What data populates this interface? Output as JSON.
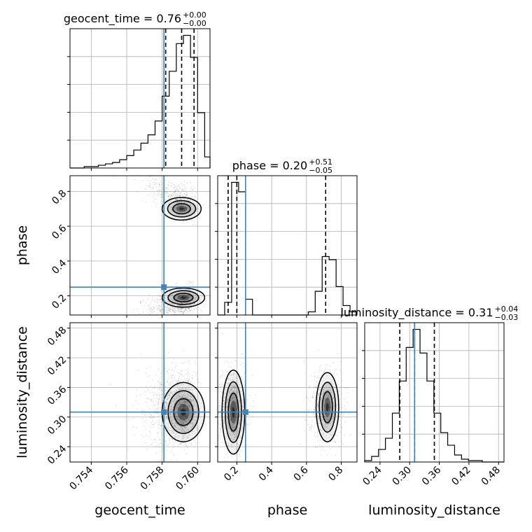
{
  "colors": {
    "truth": "#4682b4",
    "hist": "#000000",
    "grid": "#b0b0b0",
    "points": "#000000"
  },
  "chart_data": {
    "type": "corner",
    "parameters": [
      "geocent_time",
      "phase",
      "luminosity_distance"
    ],
    "titles": [
      {
        "param": "geocent_time",
        "text": "geocent_time = 0.76",
        "sup": "+0.00",
        "sub": "−0.00"
      },
      {
        "param": "phase",
        "text": "phase = 0.20",
        "sup": "+0.51",
        "sub": "−0.05"
      },
      {
        "param": "luminosity_distance",
        "text": "luminosity_distance = 0.31",
        "sup": "+0.04",
        "sub": "−0.03"
      }
    ],
    "ranges": {
      "geocent_time": [
        0.7528,
        0.7607
      ],
      "phase": [
        0.09,
        0.89
      ],
      "luminosity_distance": [
        0.209,
        0.491
      ]
    },
    "ticks": {
      "geocent_time": [
        0.754,
        0.756,
        0.758,
        0.76
      ],
      "phase": [
        0.2,
        0.4,
        0.6,
        0.8
      ],
      "luminosity_distance": [
        0.24,
        0.3,
        0.36,
        0.42,
        0.48
      ]
    },
    "tick_labels": {
      "geocent_time": [
        "0.754",
        "0.756",
        "0.758",
        "0.760"
      ],
      "phase": [
        "0.2",
        "0.4",
        "0.6",
        "0.8"
      ],
      "luminosity_distance": [
        "0.24",
        "0.30",
        "0.36",
        "0.42",
        "0.48"
      ]
    },
    "axis_labels": {
      "geocent_time": "geocent_time",
      "phase": "phase",
      "luminosity_distance": "luminosity_distance"
    },
    "truths": {
      "geocent_time": 0.7581,
      "phase": 0.25,
      "luminosity_distance": 0.31
    },
    "quantiles": {
      "geocent_time": [
        0.7582,
        0.7591,
        0.7598
      ],
      "phase": [
        0.15,
        0.2,
        0.71
      ],
      "luminosity_distance": [
        0.28,
        0.31,
        0.35
      ]
    },
    "histograms": {
      "geocent_time": {
        "edges": [
          0.7528,
          0.7532,
          0.7536,
          0.754,
          0.7544,
          0.7548,
          0.7552,
          0.7556,
          0.756,
          0.7564,
          0.7568,
          0.7572,
          0.7576,
          0.758,
          0.7584,
          0.7588,
          0.7592,
          0.7596,
          0.76,
          0.7604,
          0.7607
        ],
        "counts": [
          0,
          0,
          1,
          1,
          2,
          3,
          4,
          6,
          9,
          13,
          18,
          24,
          34,
          52,
          70,
          90,
          96,
          80,
          40,
          8
        ]
      },
      "phase": {
        "edges": [
          0.09,
          0.13,
          0.17,
          0.21,
          0.25,
          0.29,
          0.33,
          0.37,
          0.41,
          0.45,
          0.49,
          0.53,
          0.57,
          0.61,
          0.65,
          0.69,
          0.73,
          0.77,
          0.81,
          0.85,
          0.89
        ],
        "counts": [
          0,
          8,
          84,
          78,
          10,
          0,
          0,
          0,
          0,
          0,
          0,
          0,
          0,
          2,
          15,
          37,
          35,
          18,
          6,
          2
        ]
      },
      "luminosity_distance": {
        "edges": [
          0.209,
          0.223,
          0.237,
          0.251,
          0.265,
          0.279,
          0.293,
          0.307,
          0.321,
          0.335,
          0.349,
          0.363,
          0.377,
          0.391,
          0.405,
          0.419,
          0.433,
          0.447,
          0.461,
          0.475,
          0.491
        ],
        "counts": [
          1,
          4,
          9,
          17,
          35,
          58,
          82,
          95,
          78,
          58,
          35,
          21,
          12,
          5,
          2,
          1,
          1,
          0,
          0,
          0
        ]
      }
    },
    "grid": true
  }
}
